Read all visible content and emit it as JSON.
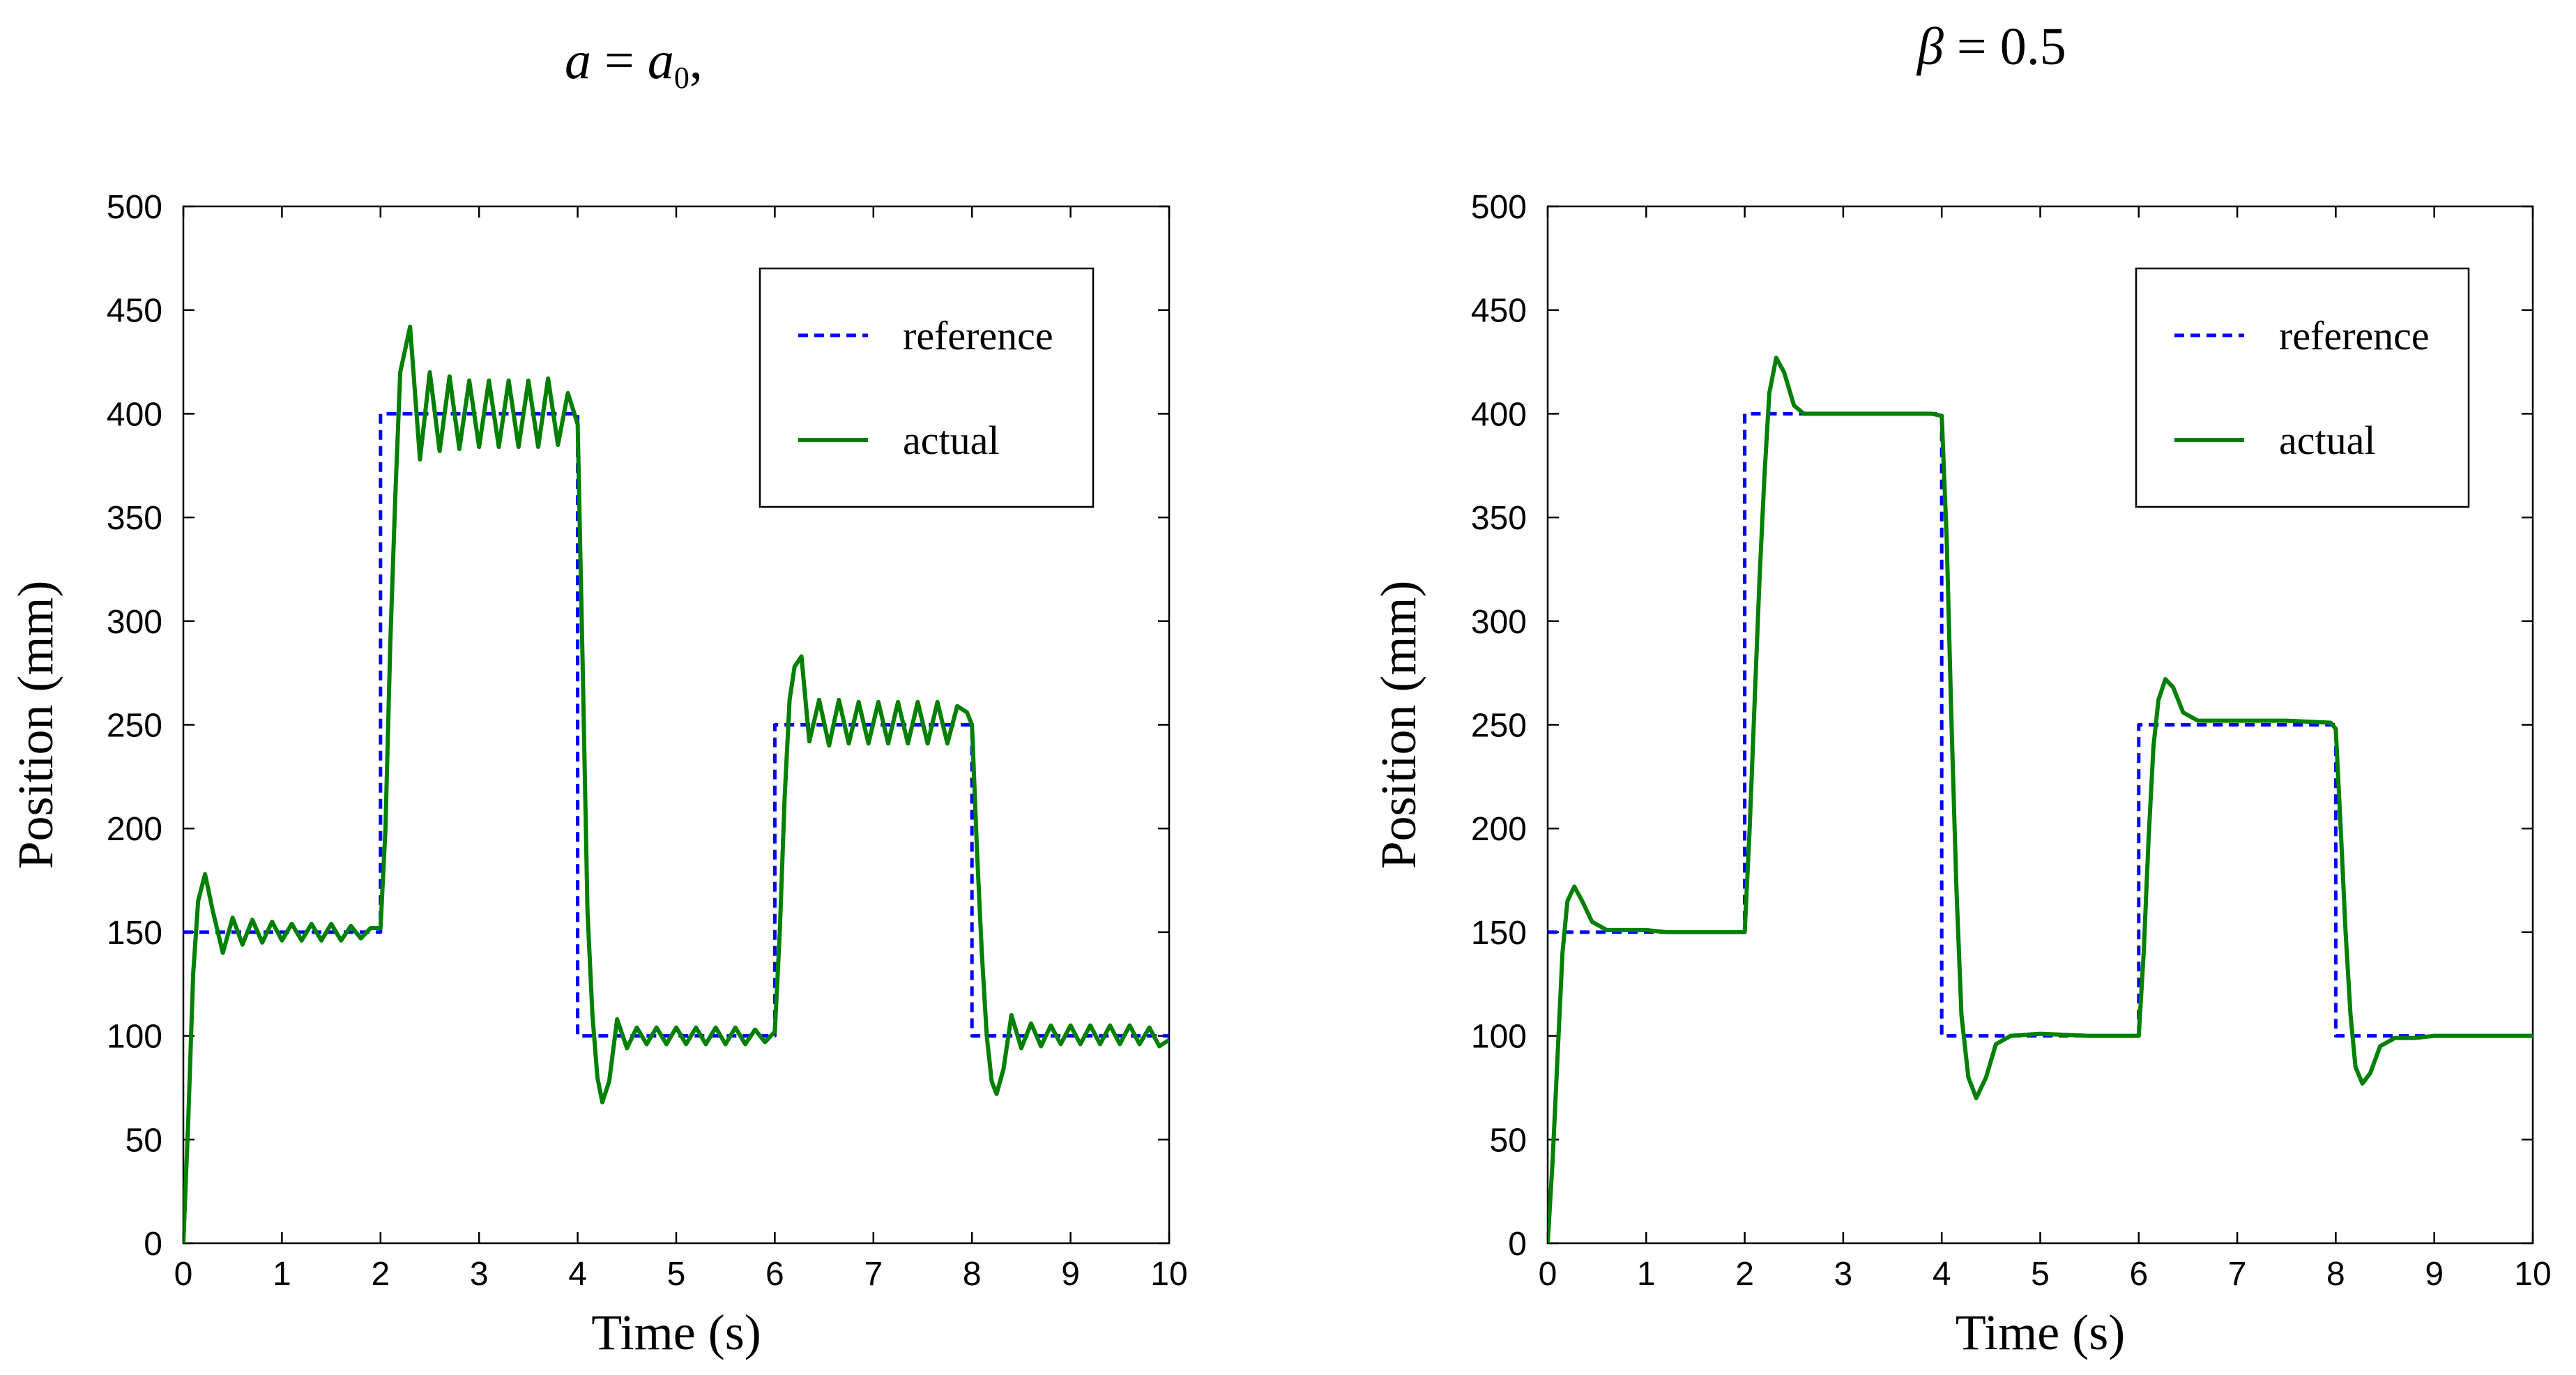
{
  "chart_data": [
    {
      "type": "line",
      "title": "a = a₀,",
      "title_parts": {
        "var": "a",
        "eq": " = ",
        "rhs": "a",
        "sub": "0",
        "tail": ","
      },
      "xlabel": "Time (s)",
      "ylabel": "Position (mm)",
      "xlim": [
        0,
        10
      ],
      "ylim": [
        0,
        500
      ],
      "xticks": [
        0,
        1,
        2,
        3,
        4,
        5,
        6,
        7,
        8,
        9,
        10
      ],
      "yticks": [
        0,
        50,
        100,
        150,
        200,
        250,
        300,
        350,
        400,
        450,
        500
      ],
      "grid": false,
      "legend_position": "top-right",
      "series": [
        {
          "name": "reference",
          "color": "#0000ff",
          "style": "dashed",
          "x": [
            0,
            2,
            2,
            4,
            4,
            6,
            6,
            8,
            8,
            10
          ],
          "y": [
            150,
            150,
            400,
            400,
            100,
            100,
            250,
            250,
            100,
            100
          ]
        },
        {
          "name": "actual",
          "color": "#008000",
          "style": "solid",
          "x": [
            0,
            0.05,
            0.1,
            0.15,
            0.22,
            0.3,
            0.4,
            0.5,
            0.6,
            0.7,
            0.8,
            0.9,
            1.0,
            1.1,
            1.2,
            1.3,
            1.4,
            1.5,
            1.6,
            1.7,
            1.8,
            1.9,
            2.0,
            2.05,
            2.1,
            2.15,
            2.2,
            2.3,
            2.4,
            2.5,
            2.6,
            2.7,
            2.8,
            2.9,
            3.0,
            3.1,
            3.2,
            3.3,
            3.4,
            3.5,
            3.6,
            3.7,
            3.8,
            3.9,
            4.0,
            4.05,
            4.1,
            4.15,
            4.2,
            4.25,
            4.32,
            4.4,
            4.5,
            4.6,
            4.7,
            4.8,
            4.9,
            5.0,
            5.1,
            5.2,
            5.3,
            5.4,
            5.5,
            5.6,
            5.7,
            5.8,
            5.9,
            6.0,
            6.05,
            6.1,
            6.15,
            6.2,
            6.27,
            6.35,
            6.45,
            6.55,
            6.65,
            6.75,
            6.85,
            6.95,
            7.05,
            7.15,
            7.25,
            7.35,
            7.45,
            7.55,
            7.65,
            7.75,
            7.85,
            7.95,
            8.0,
            8.05,
            8.1,
            8.15,
            8.2,
            8.25,
            8.32,
            8.4,
            8.5,
            8.6,
            8.7,
            8.8,
            8.9,
            9.0,
            9.1,
            9.2,
            9.3,
            9.4,
            9.5,
            9.6,
            9.7,
            9.8,
            9.9,
            10.0
          ],
          "y": [
            0,
            60,
            130,
            165,
            178,
            160,
            140,
            157,
            144,
            156,
            145,
            155,
            146,
            154,
            146,
            154,
            146,
            154,
            146,
            153,
            147,
            152,
            152,
            200,
            290,
            360,
            420,
            442,
            378,
            420,
            382,
            418,
            383,
            416,
            384,
            416,
            384,
            416,
            384,
            416,
            384,
            417,
            385,
            410,
            395,
            280,
            160,
            110,
            80,
            68,
            78,
            108,
            94,
            104,
            96,
            104,
            96,
            104,
            96,
            104,
            96,
            104,
            96,
            104,
            96,
            103,
            97,
            102,
            150,
            215,
            262,
            278,
            283,
            242,
            262,
            240,
            262,
            241,
            261,
            241,
            261,
            241,
            261,
            241,
            261,
            241,
            261,
            241,
            259,
            256,
            250,
            190,
            140,
            100,
            78,
            72,
            84,
            110,
            94,
            106,
            95,
            105,
            96,
            105,
            96,
            105,
            96,
            105,
            96,
            105,
            96,
            104,
            95,
            98
          ]
        }
      ],
      "legend": {
        "reference": "reference",
        "actual": "actual"
      }
    },
    {
      "type": "line",
      "title": "β = 0.5",
      "title_parts": {
        "var": "β",
        "eq": " = ",
        "rhs": "0.5"
      },
      "xlabel": "Time (s)",
      "ylabel": "Position (mm)",
      "xlim": [
        0,
        10
      ],
      "ylim": [
        0,
        500
      ],
      "xticks": [
        0,
        1,
        2,
        3,
        4,
        5,
        6,
        7,
        8,
        9,
        10
      ],
      "yticks": [
        0,
        50,
        100,
        150,
        200,
        250,
        300,
        350,
        400,
        450,
        500
      ],
      "grid": false,
      "legend_position": "top-right",
      "series": [
        {
          "name": "reference",
          "color": "#0000ff",
          "style": "dashed",
          "x": [
            0,
            2,
            2,
            4,
            4,
            6,
            6,
            8,
            8,
            9.2
          ],
          "y": [
            150,
            150,
            400,
            400,
            100,
            100,
            250,
            250,
            100,
            100
          ]
        },
        {
          "name": "actual",
          "color": "#008000",
          "style": "solid",
          "x": [
            0,
            0.05,
            0.1,
            0.15,
            0.2,
            0.27,
            0.35,
            0.45,
            0.6,
            0.8,
            1.0,
            1.2,
            1.5,
            2.0,
            2.05,
            2.1,
            2.15,
            2.2,
            2.25,
            2.32,
            2.4,
            2.5,
            2.6,
            2.8,
            3.0,
            3.5,
            3.9,
            4.0,
            4.05,
            4.1,
            4.15,
            4.2,
            4.27,
            4.35,
            4.45,
            4.55,
            4.7,
            5.0,
            5.5,
            6.0,
            6.05,
            6.1,
            6.15,
            6.2,
            6.27,
            6.35,
            6.45,
            6.6,
            6.8,
            7.0,
            7.5,
            7.95,
            8.0,
            8.05,
            8.1,
            8.15,
            8.2,
            8.27,
            8.35,
            8.45,
            8.6,
            8.8,
            9.0,
            9.5,
            10.0
          ],
          "y": [
            0,
            40,
            90,
            140,
            165,
            172,
            165,
            155,
            151,
            151,
            151,
            150,
            150,
            150,
            200,
            260,
            320,
            370,
            410,
            427,
            420,
            404,
            400,
            400,
            400,
            400,
            400,
            399,
            340,
            250,
            170,
            110,
            80,
            70,
            80,
            96,
            100,
            101,
            100,
            100,
            140,
            195,
            240,
            262,
            272,
            268,
            256,
            252,
            252,
            252,
            252,
            251,
            248,
            200,
            150,
            110,
            85,
            77,
            82,
            95,
            99,
            99,
            100,
            100,
            100
          ]
        }
      ],
      "legend": {
        "reference": "reference",
        "actual": "actual"
      }
    }
  ]
}
